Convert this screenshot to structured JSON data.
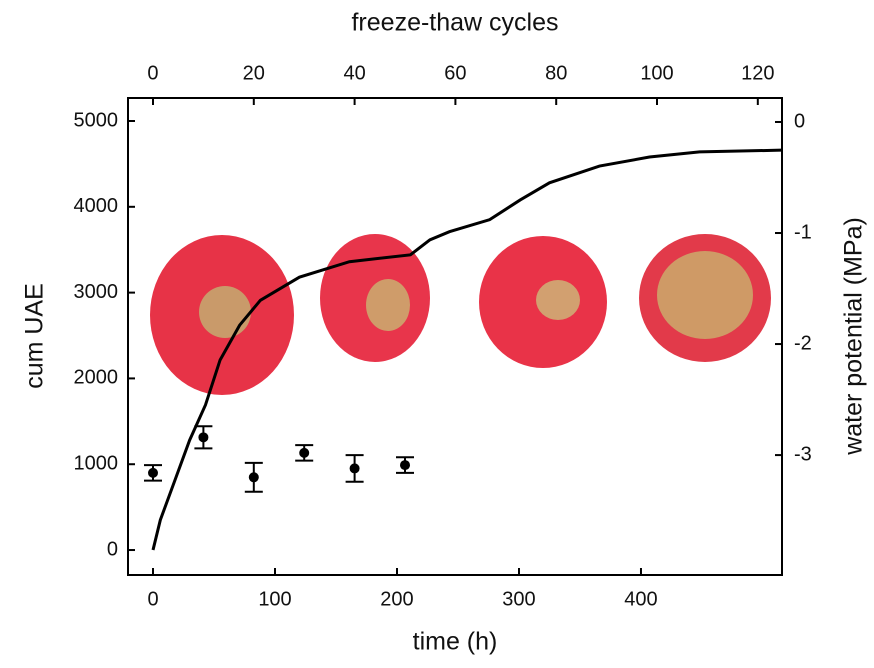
{
  "chart_data": {
    "type": "line",
    "xlabel": "time (h)",
    "x2label": "freeze-thaw cycles",
    "ylabel": "cum UAE",
    "y2label": "water potential (MPa)",
    "x": [
      0,
      6,
      18,
      30,
      43,
      55,
      71,
      88,
      120,
      161,
      211,
      227,
      243,
      276,
      301,
      325,
      366,
      407,
      448,
      515
    ],
    "values": [
      0,
      350,
      815,
      1280,
      1690,
      2215,
      2620,
      2910,
      3180,
      3360,
      3440,
      3615,
      3710,
      3850,
      4080,
      4280,
      4475,
      4580,
      4640,
      4660
    ],
    "color": "#000000",
    "points": {
      "x": [
        0,
        10,
        20,
        30,
        40,
        50
      ],
      "values": [
        -3.16,
        -2.84,
        -3.2,
        -2.98,
        -3.12,
        -3.09
      ],
      "errors": [
        0.07,
        0.1,
        0.13,
        0.07,
        0.12,
        0.07
      ],
      "axis": "y2",
      "xaxis": "x2",
      "color": "#000000"
    },
    "xlim": [
      -20.5,
      515.6
    ],
    "xticks": [
      0,
      100,
      200,
      300,
      400
    ],
    "x2lim": [
      -4.96,
      124.8
    ],
    "x2ticks": [
      0,
      20,
      40,
      60,
      80,
      100,
      120
    ],
    "ylim": [
      -291,
      5268
    ],
    "yticks": [
      0,
      1000,
      2000,
      3000,
      4000,
      5000
    ],
    "y2lim": [
      -4.08,
      0.216
    ],
    "y2ticks": [
      0,
      -1,
      -2,
      -3
    ]
  }
}
